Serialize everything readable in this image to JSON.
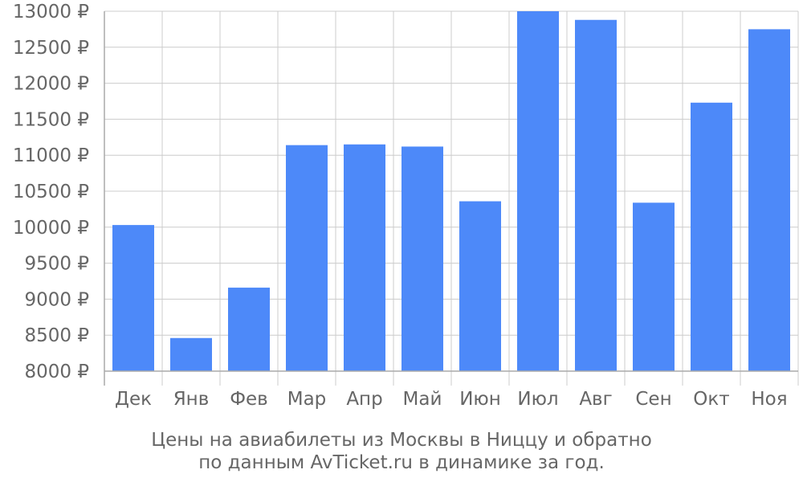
{
  "chart_data": {
    "type": "bar",
    "categories": [
      "Дек",
      "Янв",
      "Фев",
      "Мар",
      "Апр",
      "Май",
      "Июн",
      "Июл",
      "Авг",
      "Сен",
      "Окт",
      "Ноя"
    ],
    "values": [
      10030,
      8460,
      9160,
      11140,
      11150,
      11120,
      10360,
      13000,
      12880,
      10340,
      11730,
      12750
    ],
    "ylim": [
      8000,
      13000
    ],
    "yticks": [
      8000,
      8500,
      9000,
      9500,
      10000,
      10500,
      11000,
      11500,
      12000,
      12500,
      13000
    ],
    "ytick_labels": [
      "8000 ₽",
      "8500 ₽",
      "9000 ₽",
      "9500 ₽",
      "10000 ₽",
      "10500 ₽",
      "11000 ₽",
      "11500 ₽",
      "12000 ₽",
      "12500 ₽",
      "13000 ₽"
    ],
    "grid": true,
    "bar_color": "#4d89f9",
    "grid_color": "#cccccc",
    "axis_color": "#aaaaaa",
    "text_color": "#666666"
  },
  "caption": {
    "line1": "Цены на авиабилеты из Москвы в Ниццу и обратно",
    "line2": "по данным AvTicket.ru в динамике за год."
  }
}
